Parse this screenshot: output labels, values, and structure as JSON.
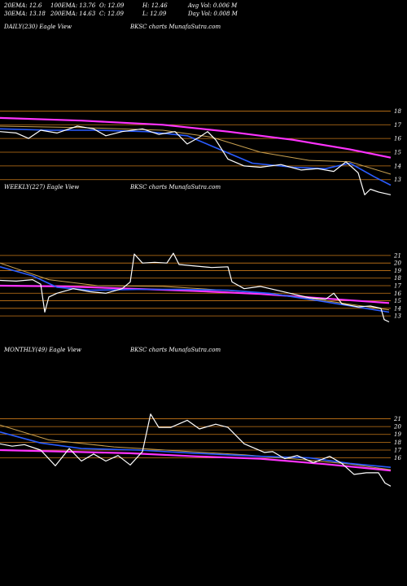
{
  "header": {
    "ema20": "20EMA: 12.6",
    "ema100": "100EMA: 13.76",
    "open": "O: 12.09",
    "high": "H: 12.46",
    "avgvol": "Avg Vol: 0.006  M",
    "ema30": "30EMA: 13.18",
    "ema200": "200EMA: 14.63",
    "close": "C: 12.09",
    "low": "L: 12.09",
    "dayvol": "Day Vol: 0.008  M"
  },
  "colors": {
    "background": "#000000",
    "price": "#ffffff",
    "ema_short": "#2a5cff",
    "ema_long": "#ff33ff",
    "ema_mid": "#c8a050",
    "level_lines": "#c87818"
  },
  "chart_data": [
    {
      "type": "line",
      "panel_label": "DAILY(230) Eagle  View",
      "center_label": "BKSC charts MunafaSutra.com",
      "ylim": [
        11.5,
        18.5
      ],
      "levels": [
        18,
        17,
        16,
        15,
        14,
        13
      ],
      "tick_labels": [
        "18",
        "17",
        "16",
        "15",
        "14",
        "13"
      ],
      "price": [
        [
          0,
          16.5
        ],
        [
          20,
          16.4
        ],
        [
          35,
          16.0
        ],
        [
          50,
          16.6
        ],
        [
          70,
          16.4
        ],
        [
          95,
          16.9
        ],
        [
          115,
          16.7
        ],
        [
          130,
          16.2
        ],
        [
          150,
          16.5
        ],
        [
          175,
          16.7
        ],
        [
          195,
          16.3
        ],
        [
          215,
          16.5
        ],
        [
          230,
          15.6
        ],
        [
          245,
          16.1
        ],
        [
          255,
          16.5
        ],
        [
          265,
          15.9
        ],
        [
          280,
          14.5
        ],
        [
          300,
          14.0
        ],
        [
          320,
          13.9
        ],
        [
          345,
          14.1
        ],
        [
          370,
          13.7
        ],
        [
          390,
          13.8
        ],
        [
          410,
          13.6
        ],
        [
          425,
          14.3
        ],
        [
          440,
          13.5
        ],
        [
          448,
          11.9
        ],
        [
          455,
          12.3
        ],
        [
          465,
          12.1
        ],
        [
          480,
          11.9
        ]
      ],
      "ema_short": [
        [
          0,
          16.7
        ],
        [
          60,
          16.6
        ],
        [
          120,
          16.6
        ],
        [
          180,
          16.5
        ],
        [
          230,
          16.2
        ],
        [
          270,
          15.2
        ],
        [
          310,
          14.2
        ],
        [
          360,
          13.9
        ],
        [
          400,
          13.8
        ],
        [
          430,
          14.2
        ],
        [
          460,
          13.2
        ],
        [
          480,
          12.6
        ]
      ],
      "ema_mid": [
        [
          0,
          16.9
        ],
        [
          100,
          16.8
        ],
        [
          200,
          16.6
        ],
        [
          260,
          16.1
        ],
        [
          320,
          15.0
        ],
        [
          380,
          14.4
        ],
        [
          430,
          14.3
        ],
        [
          480,
          13.4
        ]
      ],
      "ema_long": [
        [
          0,
          17.5
        ],
        [
          100,
          17.3
        ],
        [
          200,
          17.0
        ],
        [
          280,
          16.5
        ],
        [
          360,
          15.9
        ],
        [
          430,
          15.2
        ],
        [
          480,
          14.6
        ]
      ]
    },
    {
      "type": "line",
      "panel_label": "WEEKLY(227) Eagle  View",
      "center_label": "BKSC charts MunafaSutra.com",
      "ylim": [
        11.5,
        22.5
      ],
      "levels": [
        21,
        20,
        19,
        18,
        17,
        16,
        15,
        14,
        13
      ],
      "tick_labels": [
        "21",
        "20",
        "19",
        "18",
        "17",
        "16",
        "15",
        "14",
        "13"
      ],
      "price": [
        [
          0,
          17.7
        ],
        [
          20,
          17.6
        ],
        [
          40,
          17.8
        ],
        [
          50,
          17.2
        ],
        [
          55,
          13.5
        ],
        [
          60,
          15.5
        ],
        [
          70,
          16.0
        ],
        [
          90,
          16.6
        ],
        [
          110,
          16.2
        ],
        [
          130,
          16.0
        ],
        [
          150,
          16.6
        ],
        [
          160,
          17.5
        ],
        [
          165,
          21.2
        ],
        [
          175,
          20.0
        ],
        [
          190,
          20.1
        ],
        [
          205,
          20.0
        ],
        [
          213,
          21.3
        ],
        [
          220,
          19.8
        ],
        [
          240,
          19.6
        ],
        [
          260,
          19.4
        ],
        [
          280,
          19.5
        ],
        [
          285,
          17.5
        ],
        [
          300,
          16.6
        ],
        [
          320,
          16.9
        ],
        [
          340,
          16.4
        ],
        [
          360,
          15.9
        ],
        [
          380,
          15.4
        ],
        [
          400,
          15.2
        ],
        [
          410,
          16.0
        ],
        [
          420,
          14.6
        ],
        [
          440,
          14.2
        ],
        [
          455,
          14.3
        ],
        [
          468,
          14.0
        ],
        [
          472,
          12.5
        ],
        [
          478,
          12.2
        ]
      ],
      "ema_short": [
        [
          0,
          19.5
        ],
        [
          40,
          18.3
        ],
        [
          70,
          16.8
        ],
        [
          110,
          16.4
        ],
        [
          170,
          16.5
        ],
        [
          220,
          16.5
        ],
        [
          280,
          16.4
        ],
        [
          330,
          16.0
        ],
        [
          380,
          15.2
        ],
        [
          420,
          14.5
        ],
        [
          478,
          13.5
        ]
      ],
      "ema_mid": [
        [
          0,
          20.0
        ],
        [
          60,
          17.8
        ],
        [
          120,
          17.0
        ],
        [
          200,
          16.9
        ],
        [
          260,
          16.5
        ],
        [
          330,
          16.0
        ],
        [
          400,
          15.0
        ],
        [
          478,
          13.8
        ]
      ],
      "ema_long": [
        [
          0,
          17.0
        ],
        [
          80,
          16.9
        ],
        [
          160,
          16.6
        ],
        [
          240,
          16.3
        ],
        [
          320,
          15.9
        ],
        [
          400,
          15.3
        ],
        [
          478,
          14.7
        ]
      ]
    },
    {
      "type": "line",
      "panel_label": "MONTHLY(49) Eagle  View",
      "center_label": "BKSC charts MunafaSutra.com",
      "ylim": [
        11.5,
        22.5
      ],
      "levels": [
        21,
        20,
        19,
        18,
        17,
        16
      ],
      "tick_labels": [
        "21",
        "20",
        "19",
        "18",
        "17",
        "16"
      ],
      "price": [
        [
          0,
          17.8
        ],
        [
          15,
          17.5
        ],
        [
          30,
          17.7
        ],
        [
          50,
          17.0
        ],
        [
          68,
          15.0
        ],
        [
          85,
          17.2
        ],
        [
          100,
          15.6
        ],
        [
          115,
          16.5
        ],
        [
          130,
          15.6
        ],
        [
          145,
          16.3
        ],
        [
          160,
          15.1
        ],
        [
          175,
          16.8
        ],
        [
          185,
          21.6
        ],
        [
          195,
          19.9
        ],
        [
          210,
          19.9
        ],
        [
          230,
          20.8
        ],
        [
          245,
          19.7
        ],
        [
          265,
          20.3
        ],
        [
          280,
          19.9
        ],
        [
          300,
          17.8
        ],
        [
          325,
          16.7
        ],
        [
          335,
          16.8
        ],
        [
          350,
          15.9
        ],
        [
          365,
          16.3
        ],
        [
          385,
          15.4
        ],
        [
          405,
          16.2
        ],
        [
          420,
          15.3
        ],
        [
          435,
          13.9
        ],
        [
          450,
          14.1
        ],
        [
          465,
          14.1
        ],
        [
          473,
          12.8
        ],
        [
          480,
          12.4
        ]
      ],
      "ema_short": [
        [
          0,
          19.3
        ],
        [
          50,
          17.9
        ],
        [
          100,
          17.2
        ],
        [
          170,
          17.0
        ],
        [
          240,
          16.6
        ],
        [
          320,
          16.2
        ],
        [
          380,
          16.0
        ],
        [
          430,
          15.3
        ],
        [
          480,
          14.8
        ]
      ],
      "ema_mid": [
        [
          0,
          20.2
        ],
        [
          60,
          18.3
        ],
        [
          140,
          17.4
        ],
        [
          220,
          16.9
        ],
        [
          300,
          16.4
        ],
        [
          380,
          15.7
        ],
        [
          430,
          15.2
        ],
        [
          480,
          14.5
        ]
      ],
      "ema_long": [
        [
          0,
          17.0
        ],
        [
          80,
          16.8
        ],
        [
          160,
          16.6
        ],
        [
          240,
          16.2
        ],
        [
          320,
          15.9
        ],
        [
          400,
          15.2
        ],
        [
          480,
          14.4
        ]
      ]
    }
  ]
}
